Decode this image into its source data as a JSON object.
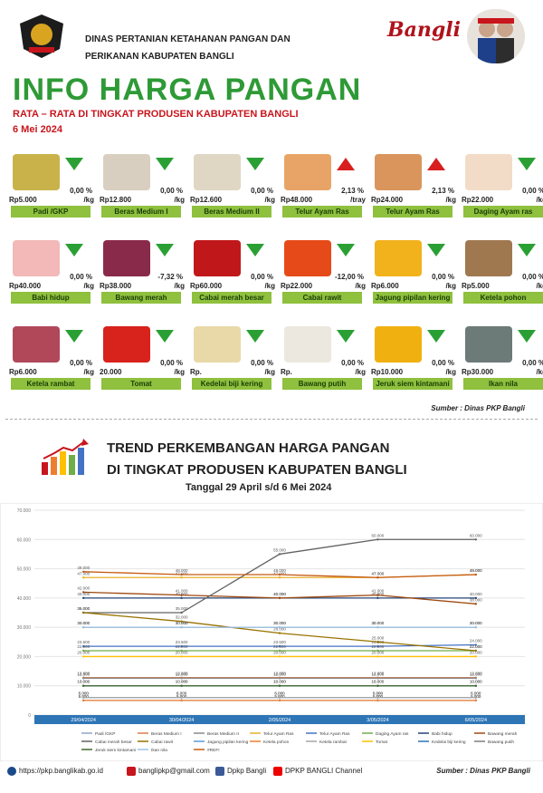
{
  "header": {
    "org_line1": "DINAS PERTANIAN KETAHANAN PANGAN DAN",
    "org_line2": "PERIKANAN KABUPATEN BANGLI",
    "brand": "Bangli",
    "title": "INFO HARGA PANGAN",
    "subtitle": "RATA – RATA DI TINGKAT PRODUSEN KABUPATEN BANGLI",
    "date": "6 Mei 2024"
  },
  "items": [
    {
      "name": "Padi /GKP",
      "price": "Rp5.000",
      "unit": "/kg",
      "pct": "0,00 %",
      "trend": "down",
      "color": "#c9b24a",
      "icon": "grain-icon"
    },
    {
      "name": "Beras Medium I",
      "price": "Rp12.800",
      "unit": "/kg",
      "pct": "0,00 %",
      "trend": "down",
      "color": "#d9cfc0",
      "icon": "rice-icon"
    },
    {
      "name": "Beras Medium II",
      "price": "Rp12.600",
      "unit": "/kg",
      "pct": "0,00 %",
      "trend": "down",
      "color": "#e0d6c4",
      "icon": "rice-icon"
    },
    {
      "name": "Telur Ayam Ras",
      "price": "Rp48.000",
      "unit": "/tray",
      "pct": "2,13 %",
      "trend": "up",
      "color": "#e8a466",
      "icon": "egg-tray-icon"
    },
    {
      "name": "Telur Ayam Ras",
      "price": "Rp24.000",
      "unit": "/kg",
      "pct": "2,13 %",
      "trend": "up",
      "color": "#d9955c",
      "icon": "egg-icon"
    },
    {
      "name": "Daging Ayam ras",
      "price": "Rp22.000",
      "unit": "/kg",
      "pct": "0,00 %",
      "trend": "down",
      "color": "#f2dcc7",
      "icon": "chicken-icon"
    },
    {
      "name": "Babi hidup",
      "price": "Rp40.000",
      "unit": "/kg",
      "pct": "0,00 %",
      "trend": "down",
      "color": "#f3b8b8",
      "icon": "pig-icon"
    },
    {
      "name": "Bawang merah",
      "price": "Rp38.000",
      "unit": "/kg",
      "pct": "-7,32 %",
      "trend": "down",
      "color": "#8a2a4a",
      "icon": "shallot-icon"
    },
    {
      "name": "Cabai merah besar",
      "price": "Rp60.000",
      "unit": "/kg",
      "pct": "0,00 %",
      "trend": "down",
      "color": "#c0181a",
      "icon": "chili-icon"
    },
    {
      "name": "Cabai rawit",
      "price": "Rp22.000",
      "unit": "/kg",
      "pct": "-12,00 %",
      "trend": "down",
      "color": "#e64a19",
      "icon": "chili-icon"
    },
    {
      "name": "Jagung pipilan kering",
      "price": "Rp6.000",
      "unit": "/kg",
      "pct": "0,00 %",
      "trend": "down",
      "color": "#f2b21c",
      "icon": "corn-icon"
    },
    {
      "name": "Ketela pohon",
      "price": "Rp5.000",
      "unit": "/kg",
      "pct": "0,00 %",
      "trend": "down",
      "color": "#a07850",
      "icon": "cassava-icon"
    },
    {
      "name": "Ketela rambat",
      "price": "Rp6.000",
      "unit": "/kg",
      "pct": "0,00 %",
      "trend": "down",
      "color": "#b0485a",
      "icon": "sweet-potato-icon"
    },
    {
      "name": "Tomat",
      "price": "20.000",
      "unit": "/kg",
      "pct": "0,00 %",
      "trend": "down",
      "color": "#d8221c",
      "icon": "tomato-icon"
    },
    {
      "name": "Kedelai biji kering",
      "price": "Rp.",
      "unit": "/kg",
      "pct": "0,00 %",
      "trend": "down",
      "color": "#e9d9a8",
      "icon": "soybean-icon"
    },
    {
      "name": "Bawang putih",
      "price": "Rp.",
      "unit": "/kg",
      "pct": "0,00 %",
      "trend": "down",
      "color": "#ece8df",
      "icon": "garlic-icon"
    },
    {
      "name": "Jeruk siem kintamani",
      "price": "Rp10.000",
      "unit": "/kg",
      "pct": "0,00 %",
      "trend": "down",
      "color": "#f0b010",
      "icon": "orange-icon"
    },
    {
      "name": "Ikan nila",
      "price": "Rp30.000",
      "unit": "/kg",
      "pct": "0,00 %",
      "trend": "down",
      "color": "#6c7a78",
      "icon": "fish-icon"
    }
  ],
  "source": "Sumber : Dinas PKP Bangli",
  "trend": {
    "title1": "TREND PERKEMBANGAN HARGA PANGAN",
    "title2": "DI TINGKAT PRODUSEN KABUPATEN BANGLI",
    "range": "Tanggal 29 April s/d 6 Mei 2024"
  },
  "chart_data": {
    "type": "line",
    "ylim": [
      0,
      70000
    ],
    "yticks": [
      "0",
      "10.000",
      "20.000",
      "30.000",
      "40.000",
      "50.000",
      "60.000",
      "70.000"
    ],
    "categories": [
      "29/04/2024",
      "30/04/2024",
      "2/05/2024",
      "3/05/2024",
      "6/05/2024"
    ],
    "grid": true,
    "legend_position": "bottom",
    "series": [
      {
        "name": "Padi /GKP",
        "color": "#8fa6c8",
        "values": [
          5000,
          5000,
          5000,
          5000,
          5000
        ]
      },
      {
        "name": "Beras Medium I",
        "color": "#e07b4a",
        "values": [
          12800,
          12800,
          12800,
          12800,
          12800
        ]
      },
      {
        "name": "Beras Medium II",
        "color": "#8a8a8a",
        "values": [
          12600,
          12600,
          12600,
          12600,
          12600
        ]
      },
      {
        "name": "Telur Ayam Ras",
        "color": "#e6b02c",
        "values": [
          47000,
          47000,
          47000,
          47000,
          48000
        ]
      },
      {
        "name": "Telur Ayam Ras",
        "color": "#4472c4",
        "values": [
          23500,
          23500,
          23500,
          23500,
          24000
        ]
      },
      {
        "name": "Daging Ayam ras",
        "color": "#70ad47",
        "values": [
          22000,
          22000,
          22000,
          22000,
          22000
        ]
      },
      {
        "name": "Babi hidup",
        "color": "#264478",
        "values": [
          40000,
          40000,
          40000,
          40000,
          40000
        ]
      },
      {
        "name": "Bawang merah",
        "color": "#9e480e",
        "values": [
          42000,
          41000,
          40000,
          41000,
          38000
        ]
      },
      {
        "name": "Cabai merah besar",
        "color": "#636363",
        "values": [
          35000,
          35000,
          55000,
          60000,
          60000
        ]
      },
      {
        "name": "Cabai rawit",
        "color": "#997300",
        "values": [
          35000,
          32000,
          28000,
          25000,
          22000
        ]
      },
      {
        "name": "Jagung pipilan kering",
        "color": "#5b9bd5",
        "values": [
          6000,
          6000,
          6000,
          6000,
          6000
        ]
      },
      {
        "name": "Ketela pohon",
        "color": "#ed7d31",
        "values": [
          5000,
          5000,
          5000,
          5000,
          5000
        ]
      },
      {
        "name": "Ketela rambat",
        "color": "#a5a5a5",
        "values": [
          6000,
          6000,
          6000,
          6000,
          6000
        ]
      },
      {
        "name": "Tomat",
        "color": "#ffc000",
        "values": [
          20000,
          20000,
          20000,
          20000,
          20000
        ]
      },
      {
        "name": "Kedelai biji kering",
        "color": "#2e75b6",
        "values": [
          10000,
          10000,
          10000,
          10000,
          10000
        ]
      },
      {
        "name": "Bawang putih",
        "color": "#7f7f7f",
        "values": [
          30000,
          30000,
          30000,
          30000,
          30000
        ]
      },
      {
        "name": "Jeruk siem kintamani",
        "color": "#43682b",
        "values": [
          10000,
          10000,
          10000,
          10000,
          10000
        ]
      },
      {
        "name": "Ikan nila",
        "color": "#9dc3e6",
        "values": [
          30000,
          30000,
          30000,
          30000,
          30000
        ]
      },
      {
        "name": "#REF!",
        "color": "#c55a11",
        "values": [
          49000,
          48000,
          48000,
          47000,
          48000
        ]
      }
    ]
  },
  "footer": {
    "web": "https://pkp.banglikab.go.id",
    "mail": "banglipkp@gmail.com",
    "fb": "Dpkp Bangli",
    "yt": "DPKP BANGLI Channel",
    "source": "Sumber : Dinas PKP Bangli"
  }
}
